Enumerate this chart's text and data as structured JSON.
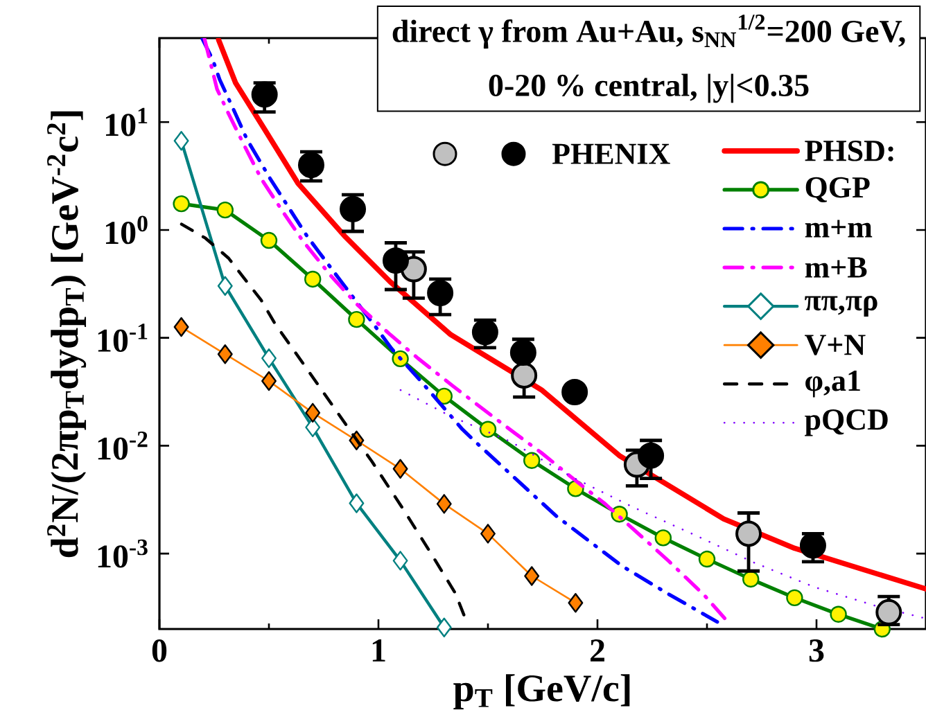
{
  "chart_data": {
    "type": "line",
    "title": "direct γ from Au+Au, s$_{NN}$$^{1/2}$=200 GeV,",
    "subtitle": "0-20 % central, |y|<0.35",
    "xlabel": "p$_{T}$ [GeV/c]",
    "ylabel": "d$^{2}$N/(2πp$_{T}$dydp$_{T}$)  [GeV$^{-2}$c$^{2}$]",
    "log": "y",
    "xlim": [
      0,
      3.5
    ],
    "ylim": [
      0.0002,
      60
    ],
    "xticks": [
      0,
      1,
      2,
      3
    ],
    "yticks": [
      {
        "value": 0.001,
        "label": "10$^{-3}$"
      },
      {
        "value": 0.01,
        "label": "10$^{-2}$"
      },
      {
        "value": 0.1,
        "label": "10$^{-1}$"
      },
      {
        "value": 1,
        "label": "10$^{0}$"
      },
      {
        "value": 10,
        "label": "10$^{1}$"
      }
    ],
    "grid": false,
    "legend": "top right",
    "series": [
      {
        "name": "PHSD:",
        "color": "#ff0000",
        "line_style": "solid",
        "marker": "none",
        "x": [
          0.27,
          0.348,
          0.475,
          0.633,
          0.845,
          1.054,
          1.33,
          1.744,
          2.1,
          2.576,
          2.9,
          3.5
        ],
        "values": [
          58,
          23,
          8.9,
          2.7,
          0.88,
          0.33,
          0.107,
          0.033,
          0.0081,
          0.0021,
          0.00112,
          0.00047
        ]
      },
      {
        "name": "QGP",
        "color": "#008000",
        "line_style": "solid",
        "marker": "circle",
        "x": [
          0.1,
          0.3,
          0.5,
          0.7,
          0.9,
          1.1,
          1.3,
          1.5,
          1.7,
          1.9,
          2.1,
          2.3,
          2.5,
          2.7,
          2.9,
          3.1,
          3.3
        ],
        "values": [
          1.75,
          1.53,
          0.8,
          0.35,
          0.148,
          0.064,
          0.0288,
          0.0142,
          0.0073,
          0.004,
          0.00232,
          0.0014,
          0.00089,
          0.00058,
          0.00039,
          0.000274,
          0.0002
        ]
      },
      {
        "name": "m+m",
        "color": "#0000ff",
        "line_style": "dashdot",
        "marker": "none",
        "x": [
          0.196,
          0.244,
          0.275,
          0.339,
          0.4,
          0.506,
          0.579,
          0.674,
          0.728,
          0.823,
          0.99,
          1.06,
          1.193,
          1.383,
          1.453,
          1.813,
          2.111,
          2.326,
          2.547
        ],
        "values": [
          59,
          37.6,
          24.8,
          13,
          6.9,
          2.98,
          1.75,
          0.877,
          0.625,
          0.347,
          0.124,
          0.0794,
          0.0398,
          0.0142,
          0.0104,
          0.00222,
          0.00077,
          0.00042,
          0.000233
        ]
      },
      {
        "name": "m+B",
        "color": "#ff00ff",
        "line_style": "dashdot",
        "marker": "none",
        "x": [
          0.206,
          0.263,
          0.316,
          0.4,
          0.465,
          0.57,
          0.655,
          0.782,
          0.896,
          1.054,
          1.18,
          1.339,
          1.462,
          1.62,
          1.744,
          1.911,
          2.035,
          2.203,
          2.326,
          2.49,
          2.601
        ],
        "values": [
          59,
          20.2,
          11.9,
          5.4,
          2.98,
          1.41,
          0.79,
          0.378,
          0.21,
          0.107,
          0.0647,
          0.0359,
          0.0231,
          0.0132,
          0.0086,
          0.00456,
          0.00289,
          0.00143,
          0.00085,
          0.000407,
          0.000226
        ]
      },
      {
        "name": "ππ,πρ",
        "color": "#008080",
        "line_style": "solid",
        "marker": "diamond",
        "x": [
          0.1,
          0.3,
          0.5,
          0.7,
          0.9,
          1.1,
          1.3
        ],
        "values": [
          6.7,
          0.303,
          0.0647,
          0.0148,
          0.00293,
          0.00086,
          0.000207
        ]
      },
      {
        "name": "V+N",
        "color": "#ff8000",
        "line_style": "solid",
        "marker": "diamond",
        "x": [
          0.1,
          0.3,
          0.5,
          0.7,
          0.9,
          1.1,
          1.3,
          1.5,
          1.7,
          1.9
        ],
        "values": [
          0.126,
          0.0706,
          0.0398,
          0.0202,
          0.0112,
          0.0061,
          0.00289,
          0.00153,
          0.00062,
          0.00035
        ]
      },
      {
        "name": "φ,a1",
        "color": "#000000",
        "line_style": "dashed",
        "marker": "none",
        "x": [
          0.101,
          0.21,
          0.316,
          0.465,
          0.528,
          0.675,
          0.823,
          0.971,
          1.108,
          1.234,
          1.351,
          1.408
        ],
        "values": [
          1.13,
          0.84,
          0.547,
          0.223,
          0.135,
          0.051,
          0.019,
          0.0071,
          0.00268,
          0.00105,
          0.00043,
          0.000219
        ]
      },
      {
        "name": "pQCD",
        "color": "#8000ff",
        "line_style": "dotted",
        "marker": "none",
        "x": [
          1.101,
          1.329,
          1.604,
          1.883,
          2.158,
          2.437,
          2.712,
          2.99,
          3.266,
          3.5
        ],
        "values": [
          0.0328,
          0.0188,
          0.0109,
          0.00513,
          0.00272,
          0.00151,
          0.00083,
          0.00049,
          0.00033,
          0.00025
        ]
      },
      {
        "type": "scatter",
        "color": "#c0c0c0",
        "marker": "circle",
        "x": [
          1.161,
          1.665,
          2.18,
          2.69,
          3.33
        ],
        "values": [
          0.433,
          0.0448,
          0.00669,
          0.00153,
          0.000286
        ],
        "errors": [
          [
            0.233,
            0.625
          ],
          [
            0.0283,
            0.0448
          ],
          [
            0.00424,
            0.0091
          ],
          [
            0.00069,
            0.00238
          ],
          [
            0.00022,
            0.0004
          ]
        ]
      },
      {
        "type": "scatter",
        "name": "PHENIX",
        "color": "#000000",
        "marker": "circle",
        "x": [
          0.48,
          0.693,
          0.883,
          1.079,
          1.282,
          1.487,
          1.661,
          1.896,
          2.244,
          2.984
        ],
        "values": [
          18,
          4.0,
          1.56,
          0.52,
          0.26,
          0.113,
          0.073,
          0.0314,
          0.0081,
          0.00119
        ],
        "errors": [
          [
            12.4,
            23.1
          ],
          [
            2.85,
            5.3
          ],
          [
            0.97,
            2.12
          ],
          [
            0.28,
            0.76
          ],
          [
            0.164,
            0.35
          ],
          [
            0.081,
            0.146
          ],
          [
            0.073,
            0.097
          ],
          null,
          [
            0.00498,
            0.0112
          ],
          [
            0.00084,
            0.00153
          ]
        ]
      }
    ]
  }
}
